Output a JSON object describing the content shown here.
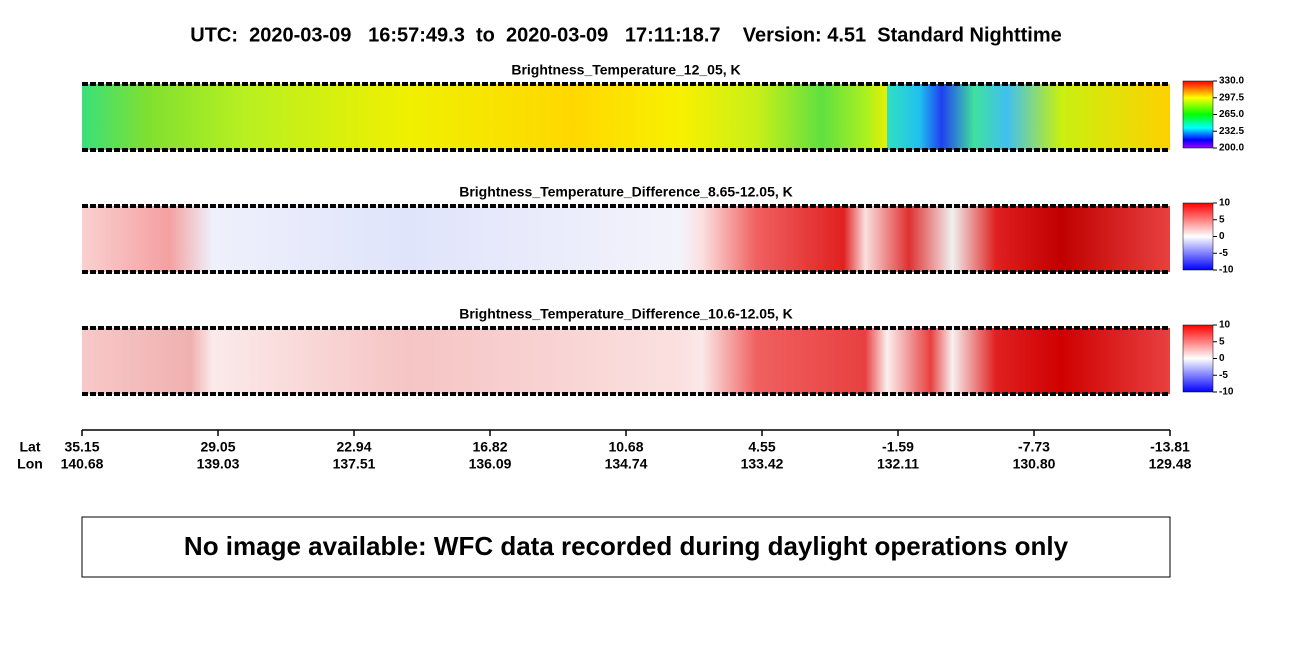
{
  "header": {
    "title": "UTC:  2020-03-09   16:57:49.3  to  2020-03-09   17:11:18.7    Version: 4.51  Standard Nighttime"
  },
  "panels": [
    {
      "title": "Brightness_Temperature_12_05, K",
      "colorbar": {
        "range": [
          200,
          330
        ],
        "ticks": [
          {
            "value": 330,
            "label": "330.0"
          },
          {
            "value": 297.5,
            "label": "297.5"
          },
          {
            "value": 265,
            "label": "265.0"
          },
          {
            "value": 232.5,
            "label": "232.5"
          },
          {
            "value": 200,
            "label": "200.0"
          }
        ]
      }
    },
    {
      "title": "Brightness_Temperature_Difference_8.65-12.05, K",
      "colorbar": {
        "range": [
          -10,
          10
        ],
        "ticks": [
          10,
          5,
          0,
          -5,
          -10
        ]
      }
    },
    {
      "title": "Brightness_Temperature_Difference_10.6-12.05, K",
      "colorbar": {
        "range": [
          -10,
          10
        ],
        "ticks": [
          10,
          5,
          0,
          -5,
          -10
        ]
      }
    }
  ],
  "axis": {
    "row_labels": [
      "Lat",
      "Lon"
    ],
    "lat": [
      "35.15",
      "29.05",
      "22.94",
      "16.82",
      "10.68",
      "4.55",
      "-1.59",
      "-7.73",
      "-13.81"
    ],
    "lon": [
      "140.68",
      "139.03",
      "137.51",
      "136.09",
      "134.74",
      "133.42",
      "132.11",
      "130.80",
      "129.48"
    ]
  },
  "notice": "No image available: WFC data recorded during daylight operations only"
}
